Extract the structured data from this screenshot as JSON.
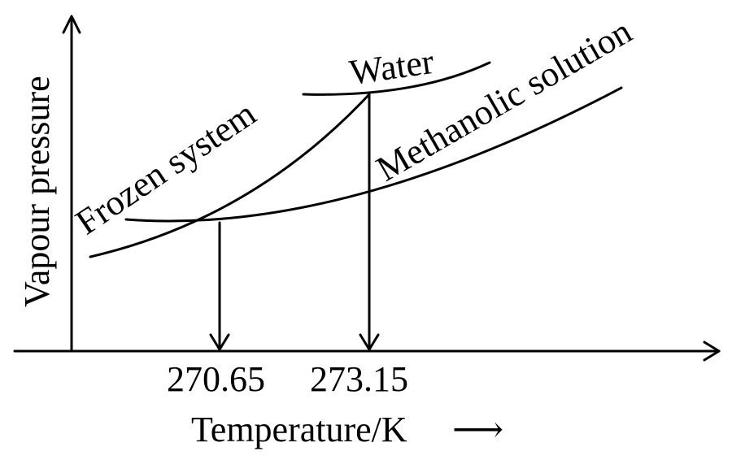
{
  "diagram": {
    "y_axis_label": "Vapour pressure",
    "x_axis_label": "Temperature/K",
    "x_axis_arrow": "⟶",
    "curves": {
      "water": "Water",
      "frozen_system": "Frozen system",
      "methanolic_solution": "Methanolic solution"
    },
    "ticks": {
      "t1": "270.65",
      "t2": "273.15"
    }
  }
}
